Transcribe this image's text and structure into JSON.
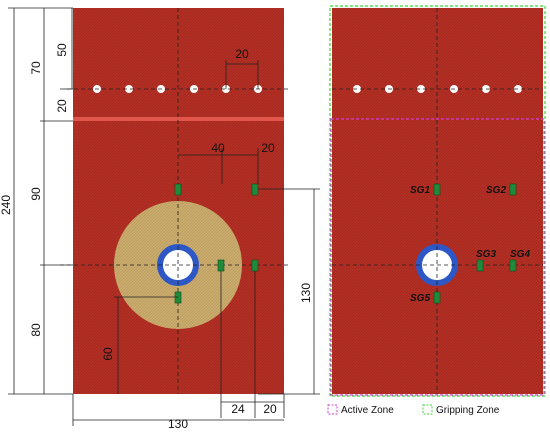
{
  "colors": {
    "plate": "#b42f24",
    "plate_texture": "#9c261d",
    "disc": "#c9ab6e",
    "ring": "#2d57c5",
    "gauge": "#1f8a3a",
    "active_zone": "#d63bd6",
    "gripping_zone": "#3bd63b",
    "dimension_line": "#222222"
  },
  "icons": {
    "bolt_hole": "white-circle-icon",
    "strain_gauge": "green-rectangle-icon"
  },
  "left_view": {
    "dimensions": {
      "height_total": "240",
      "height_grip": "70",
      "height_grip_top": "50",
      "height_grip_bottom": "20",
      "height_upper": "90",
      "height_lower": "80",
      "hole_spacing": "20",
      "offset_40": "40",
      "offset_20_upper": "20",
      "height_130": "130",
      "offset_60": "60",
      "width_total": "130",
      "offset_24": "24",
      "offset_20_lower": "20"
    }
  },
  "right_view": {
    "gauges": [
      {
        "label": "SG1"
      },
      {
        "label": "SG2"
      },
      {
        "label": "SG3"
      },
      {
        "label": "SG4"
      },
      {
        "label": "SG5"
      }
    ]
  },
  "legend": {
    "active_zone": "Active Zone",
    "gripping_zone": "Gripping Zone"
  }
}
